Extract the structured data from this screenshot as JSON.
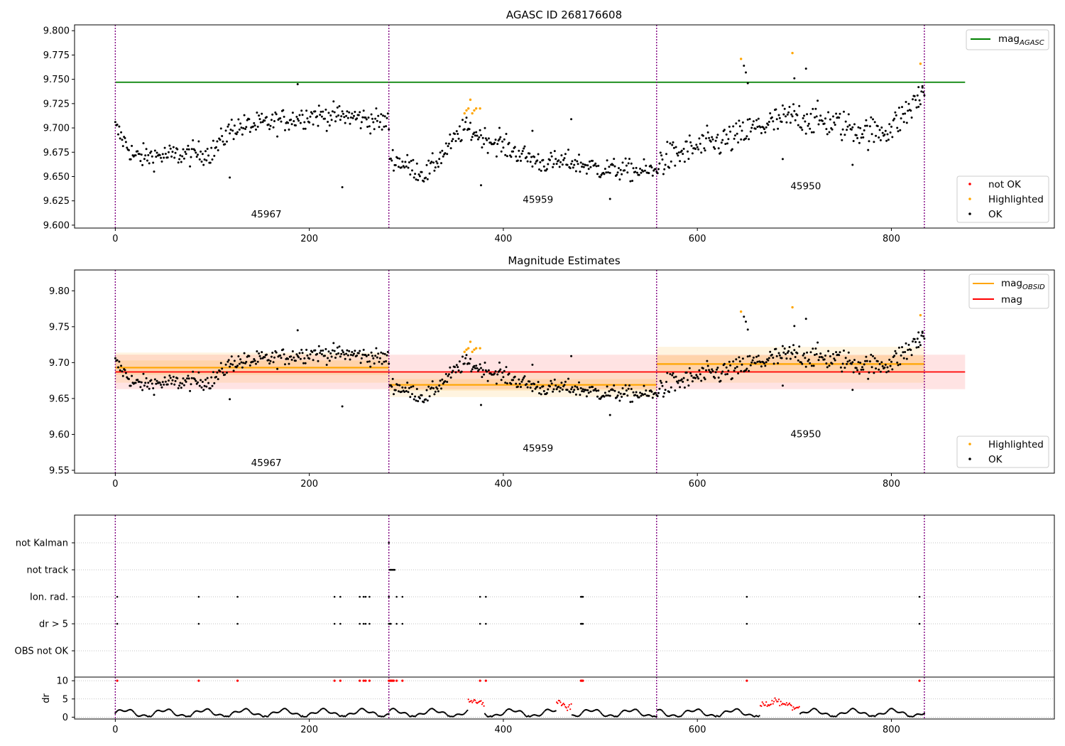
{
  "colors": {
    "ok": "#000000",
    "highlighted": "#ffa500",
    "not_ok": "#ff0000",
    "agasc_line": "#008000",
    "mag_line": "#ff0000",
    "obsid_line": "#ffa500",
    "obs_boundary": "#800080",
    "grid": "#b0b0b0"
  },
  "chart_data": [
    {
      "type": "scatter",
      "title": "AGASC ID 268176608",
      "xlim": [
        -42,
        968
      ],
      "ylim": [
        9.597,
        9.806
      ],
      "xticks": [
        0,
        200,
        400,
        600,
        800
      ],
      "yticks": [
        9.6,
        9.625,
        9.65,
        9.675,
        9.7,
        9.725,
        9.75,
        9.775,
        9.8
      ],
      "ytick_labels": [
        "9.600",
        "9.625",
        "9.650",
        "9.675",
        "9.700",
        "9.725",
        "9.750",
        "9.775",
        "9.800"
      ],
      "xtick_labels": [
        "0",
        "200",
        "400",
        "600",
        "800"
      ],
      "mag_agasc": 9.747,
      "mag_agasc_xrange": [
        0,
        876
      ],
      "obs_boundaries": [
        0,
        282,
        558,
        834
      ],
      "obs_labels": [
        {
          "text": "45967",
          "x": 140,
          "y": 9.608
        },
        {
          "text": "45959",
          "x": 420,
          "y": 9.623
        },
        {
          "text": "45950",
          "x": 696,
          "y": 9.637
        }
      ],
      "legend_top": {
        "label": "mag",
        "subscript": "AGASC",
        "placement": "top-right"
      },
      "legend_bottom": {
        "labels": [
          "not OK",
          "Highlighted",
          "OK"
        ],
        "placement": "bottom-right"
      },
      "segments": [
        {
          "x0": 0,
          "x1": 282,
          "levels": [
            [
              0,
              9.7
            ],
            [
              20,
              9.67
            ],
            [
              60,
              9.672
            ],
            [
              100,
              9.675
            ],
            [
              120,
              9.7
            ],
            [
              160,
              9.705
            ],
            [
              200,
              9.713
            ],
            [
              240,
              9.712
            ],
            [
              282,
              9.705
            ]
          ],
          "noise": 0.012
        },
        {
          "x0": 283,
          "x1": 558,
          "levels": [
            [
              283,
              9.67
            ],
            [
              320,
              9.652
            ],
            [
              360,
              9.7
            ],
            [
              380,
              9.69
            ],
            [
              420,
              9.672
            ],
            [
              440,
              9.664
            ],
            [
              470,
              9.665
            ],
            [
              500,
              9.658
            ],
            [
              558,
              9.655
            ]
          ],
          "noise": 0.011
        },
        {
          "x0": 559,
          "x1": 834,
          "levels": [
            [
              559,
              9.665
            ],
            [
              600,
              9.68
            ],
            [
              640,
              9.69
            ],
            [
              660,
              9.7
            ],
            [
              700,
              9.712
            ],
            [
              740,
              9.705
            ],
            [
              780,
              9.695
            ],
            [
              800,
              9.7
            ],
            [
              834,
              9.735
            ]
          ],
          "noise": 0.016
        }
      ],
      "highlighted": [
        [
          360,
          9.715
        ],
        [
          362,
          9.718
        ],
        [
          364,
          9.72
        ],
        [
          366,
          9.729
        ],
        [
          368,
          9.715
        ],
        [
          370,
          9.718
        ],
        [
          372,
          9.72
        ],
        [
          376,
          9.72
        ],
        [
          645,
          9.771
        ],
        [
          698,
          9.777
        ],
        [
          830,
          9.766
        ]
      ],
      "outliers": [
        [
          118,
          9.649
        ],
        [
          188,
          9.745
        ],
        [
          234,
          9.639
        ],
        [
          377,
          9.641
        ],
        [
          396,
          9.7
        ],
        [
          430,
          9.697
        ],
        [
          470,
          9.709
        ],
        [
          510,
          9.627
        ],
        [
          648,
          9.764
        ],
        [
          650,
          9.757
        ],
        [
          652,
          9.746
        ],
        [
          688,
          9.668
        ],
        [
          700,
          9.751
        ],
        [
          712,
          9.761
        ],
        [
          760,
          9.662
        ],
        [
          828,
          9.742
        ],
        [
          832,
          9.743
        ]
      ]
    },
    {
      "type": "scatter",
      "title": "Magnitude Estimates",
      "xlim": [
        -42,
        968
      ],
      "ylim": [
        9.546,
        9.829
      ],
      "xticks": [
        0,
        200,
        400,
        600,
        800
      ],
      "yticks": [
        9.55,
        9.6,
        9.65,
        9.7,
        9.75,
        9.8
      ],
      "ytick_labels": [
        "9.55",
        "9.60",
        "9.65",
        "9.70",
        "9.75",
        "9.80"
      ],
      "xtick_labels": [
        "0",
        "200",
        "400",
        "600",
        "800"
      ],
      "mag": 9.687,
      "mag_band": [
        9.663,
        9.711
      ],
      "mag_xrange": [
        0,
        876
      ],
      "mag_obsid": [
        {
          "x0": 0,
          "x1": 282,
          "value": 9.693,
          "band": [
            9.672,
            9.714
          ],
          "inner": [
            9.683,
            9.703
          ]
        },
        {
          "x0": 282,
          "x1": 558,
          "value": 9.669,
          "band": [
            9.652,
            9.686
          ],
          "inner": [
            9.661,
            9.677
          ]
        },
        {
          "x0": 558,
          "x1": 834,
          "value": 9.698,
          "band": [
            9.672,
            9.722
          ],
          "inner": [
            9.686,
            9.71
          ]
        }
      ],
      "obs_boundaries": [
        0,
        282,
        558,
        834
      ],
      "obs_labels": [
        {
          "text": "45967",
          "x": 140,
          "y": 9.556
        },
        {
          "text": "45959",
          "x": 420,
          "y": 9.576
        },
        {
          "text": "45950",
          "x": 696,
          "y": 9.596
        }
      ],
      "legend_top": [
        {
          "label": "mag",
          "subscript": "OBSID"
        },
        {
          "label": "mag",
          "subscript": ""
        }
      ],
      "legend_bottom": {
        "labels": [
          "Highlighted",
          "OK"
        ],
        "placement": "bottom-right"
      }
    },
    {
      "type": "scatter",
      "title": "",
      "xlim": [
        -42,
        968
      ],
      "xticks": [
        0,
        200,
        400,
        600,
        800
      ],
      "xtick_labels": [
        "0",
        "200",
        "400",
        "600",
        "800"
      ],
      "flag_rows": [
        "not Kalman",
        "not track",
        "Ion. rad.",
        "dr > 5",
        "OBS not OK"
      ],
      "flags": {
        "not Kalman": [
          282
        ],
        "not track": [
          283,
          284,
          285,
          286,
          287,
          288
        ],
        "Ion. rad.": [
          2,
          86,
          126,
          226,
          232,
          252,
          256,
          258,
          262,
          282,
          290,
          296,
          376,
          382,
          480,
          481,
          482,
          651,
          829
        ],
        "dr > 5": [
          2,
          86,
          126,
          226,
          232,
          252,
          256,
          258,
          262,
          282,
          283,
          284,
          290,
          296,
          376,
          382,
          480,
          481,
          482,
          651,
          829
        ],
        "OBS not OK": []
      },
      "dr_ylabel": "dr",
      "dr_ylim": [
        -0.5,
        11
      ],
      "dr_yticks": [
        0,
        5,
        10
      ],
      "dr_ytick_labels": [
        "0",
        "5",
        "10"
      ],
      "dr_capped": [
        2,
        86,
        126,
        226,
        232,
        252,
        256,
        258,
        262,
        282,
        283,
        284,
        285,
        286,
        287,
        290,
        296,
        376,
        382,
        480,
        481,
        482,
        651,
        829
      ],
      "obs_boundaries": [
        0,
        282,
        558,
        834
      ]
    }
  ]
}
